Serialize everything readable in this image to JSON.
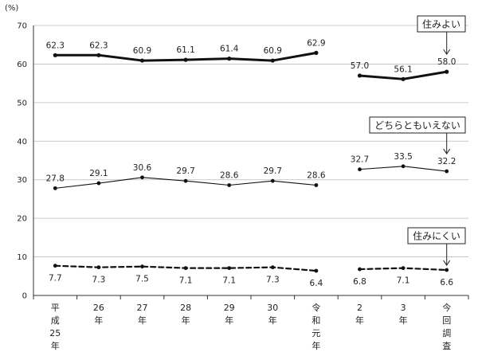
{
  "chart_data": {
    "type": "line",
    "ylabel": "(%)",
    "ylim": [
      0,
      70
    ],
    "yticks": [
      0,
      10,
      20,
      30,
      40,
      50,
      60,
      70
    ],
    "grid": true,
    "categories": [
      [
        "平",
        "成",
        "25",
        "年"
      ],
      [
        "26",
        "年"
      ],
      [
        "27",
        "年"
      ],
      [
        "28",
        "年"
      ],
      [
        "29",
        "年"
      ],
      [
        "30",
        "年"
      ],
      [
        "令",
        "和",
        "元",
        "年"
      ],
      [
        "2",
        "年"
      ],
      [
        "3",
        "年"
      ],
      [
        "今",
        "回",
        "調",
        "査"
      ]
    ],
    "segments": [
      [
        0,
        6
      ],
      [
        7,
        9
      ]
    ],
    "series": [
      {
        "name": "住みよい",
        "values": [
          62.3,
          62.3,
          60.9,
          61.1,
          61.4,
          60.9,
          62.9,
          57.0,
          56.1,
          58.0
        ],
        "labels": [
          "62.3",
          "62.3",
          "60.9",
          "61.1",
          "61.4",
          "60.9",
          "62.9",
          "57.0",
          "56.1",
          "58.0"
        ],
        "style": "thick",
        "label_position": "above"
      },
      {
        "name": "どちらともいえない",
        "values": [
          27.8,
          29.1,
          30.6,
          29.7,
          28.6,
          29.7,
          28.6,
          32.7,
          33.5,
          32.2
        ],
        "labels": [
          "27.8",
          "29.1",
          "30.6",
          "29.7",
          "28.6",
          "29.7",
          "28.6",
          "32.7",
          "33.5",
          "32.2"
        ],
        "style": "thin",
        "label_position": "above"
      },
      {
        "name": "住みにくい",
        "values": [
          7.7,
          7.3,
          7.5,
          7.1,
          7.1,
          7.3,
          6.4,
          6.8,
          7.1,
          6.6
        ],
        "labels": [
          "7.7",
          "7.3",
          "7.5",
          "7.1",
          "7.1",
          "7.3",
          "6.4",
          "6.8",
          "7.1",
          "6.6"
        ],
        "style": "dashed",
        "label_position": "below"
      }
    ]
  }
}
